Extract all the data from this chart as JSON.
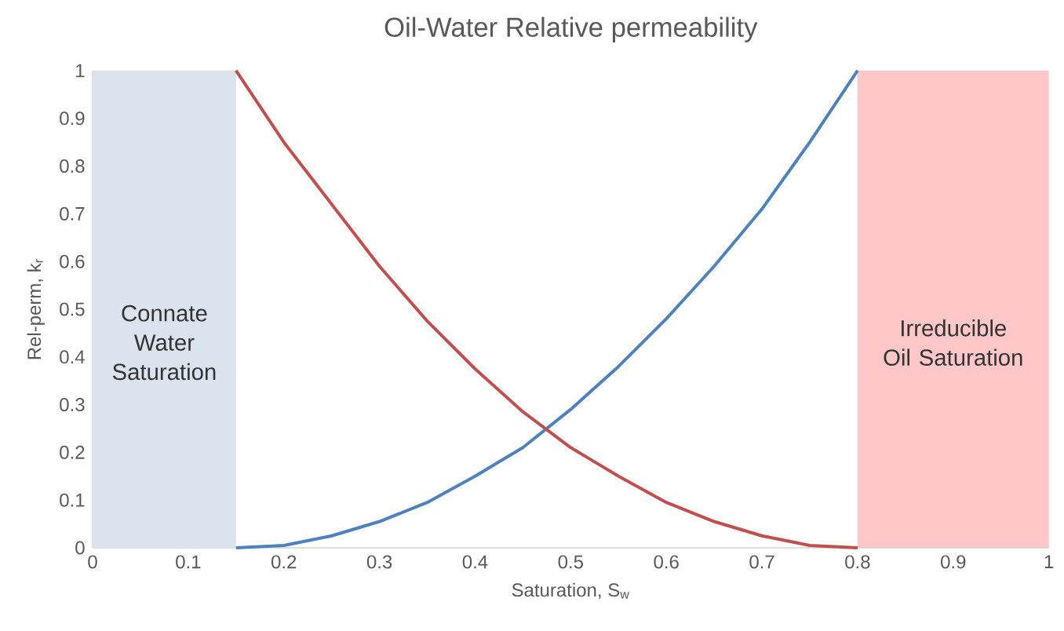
{
  "chart_data": {
    "type": "line",
    "title": "Oil-Water Relative permeability",
    "xlabel": "Saturation, S$_{w}$",
    "ylabel": "Rel-perm, k$_{r}$",
    "x": [
      0.15,
      0.2,
      0.25,
      0.3,
      0.35,
      0.4,
      0.45,
      0.5,
      0.55,
      0.6,
      0.65,
      0.7,
      0.75,
      0.8
    ],
    "series": [
      {
        "color": "#4f81bd",
        "values": [
          0,
          0.005,
          0.025,
          0.055,
          0.095,
          0.15,
          0.21,
          0.29,
          0.38,
          0.48,
          0.59,
          0.71,
          0.85,
          1
        ]
      },
      {
        "color": "#c0504d",
        "values": [
          1,
          0.85,
          0.72,
          0.59,
          0.475,
          0.375,
          0.285,
          0.21,
          0.15,
          0.095,
          0.055,
          0.025,
          0.005,
          0
        ]
      }
    ],
    "xlim": [
      0,
      1
    ],
    "ylim": [
      0,
      1
    ],
    "xticks": [
      0,
      0.1,
      0.2,
      0.3,
      0.4,
      0.5,
      0.6,
      0.7,
      0.8,
      0.9,
      1
    ],
    "yticks": [
      0,
      0.1,
      0.2,
      0.3,
      0.4,
      0.5,
      0.6,
      0.7,
      0.8,
      0.9,
      1
    ],
    "bands": [
      {
        "axis": "x",
        "from": 0,
        "to": 0.15,
        "label": "Connate Water Saturation",
        "color": "#dbe3ef"
      },
      {
        "axis": "x",
        "from": 0.8,
        "to": 1,
        "label": "Irreducible  Oil Saturation",
        "color": "#ffc7c8"
      }
    ],
    "grid": false,
    "marker": "none",
    "line_style": "solid"
  }
}
